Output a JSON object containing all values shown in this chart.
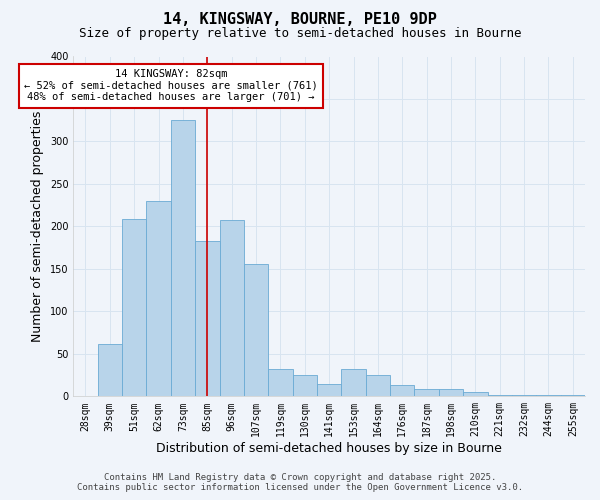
{
  "title": "14, KINGSWAY, BOURNE, PE10 9DP",
  "subtitle": "Size of property relative to semi-detached houses in Bourne",
  "xlabel": "Distribution of semi-detached houses by size in Bourne",
  "ylabel": "Number of semi-detached properties",
  "categories": [
    "28sqm",
    "39sqm",
    "51sqm",
    "62sqm",
    "73sqm",
    "85sqm",
    "96sqm",
    "107sqm",
    "119sqm",
    "130sqm",
    "141sqm",
    "153sqm",
    "164sqm",
    "176sqm",
    "187sqm",
    "198sqm",
    "210sqm",
    "221sqm",
    "232sqm",
    "244sqm",
    "255sqm"
  ],
  "bar_values": [
    0,
    62,
    209,
    230,
    325,
    183,
    208,
    156,
    32,
    25,
    15,
    32,
    25,
    13,
    9,
    9,
    5,
    2,
    2,
    1,
    2
  ],
  "bar_color": "#b8d4ea",
  "bar_edge_color": "#6aaad4",
  "vline_x": 5,
  "vline_color": "#cc0000",
  "ylim": [
    0,
    400
  ],
  "yticks": [
    0,
    50,
    100,
    150,
    200,
    250,
    300,
    350,
    400
  ],
  "annotation_line1": "14 KINGSWAY: 82sqm",
  "annotation_line2": "← 52% of semi-detached houses are smaller (761)",
  "annotation_line3": "48% of semi-detached houses are larger (701) →",
  "annotation_box_color": "#ffffff",
  "annotation_box_edge": "#cc0000",
  "footer1": "Contains HM Land Registry data © Crown copyright and database right 2025.",
  "footer2": "Contains public sector information licensed under the Open Government Licence v3.0.",
  "background_color": "#f0f4fa",
  "grid_color": "#d8e4f0",
  "title_fontsize": 11,
  "subtitle_fontsize": 9,
  "axis_label_fontsize": 9,
  "tick_fontsize": 7,
  "footer_fontsize": 6.5,
  "annotation_fontsize": 7.5
}
